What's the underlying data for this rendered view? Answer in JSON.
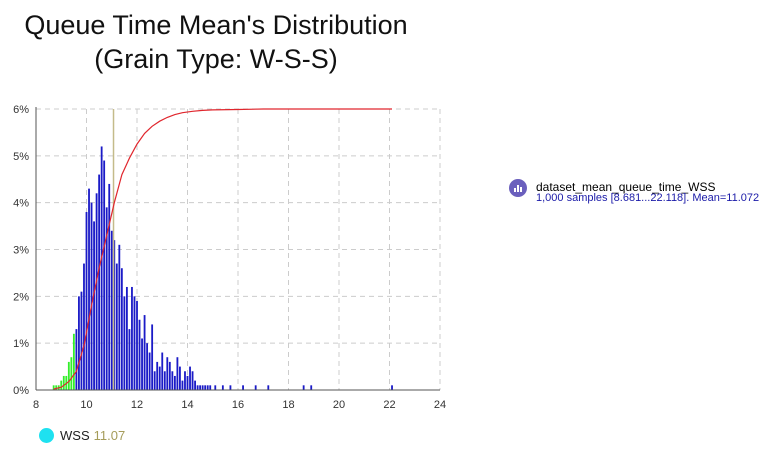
{
  "title": {
    "line1": "Queue Time Mean's Distribution",
    "line2": "(Grain Type: W-S-S)"
  },
  "colors": {
    "bar_main": "#1b1bc7",
    "bar_low": "#33ee2a",
    "cdf_line": "#e0262d",
    "marker_line": "#c4bb8a",
    "grid": "#cccccc",
    "legend_icon": "#6a5fbd",
    "marker_dot": "#1ee1f0"
  },
  "legend": {
    "series_name": "dataset_mean_queue_time_WSS",
    "series_detail": "1,000 samples [8.681...22.118]. Mean=11.072"
  },
  "marker_legend": {
    "label": "WSS",
    "value": "11.07"
  },
  "chart_data": {
    "type": "bar",
    "subtype": "histogram",
    "xlim": [
      8,
      24
    ],
    "x_ticks": [
      "8",
      "10",
      "12",
      "14",
      "16",
      "18",
      "20",
      "22",
      "24"
    ],
    "ylim": [
      0,
      6
    ],
    "y_ticks": [
      "0%",
      "1%",
      "2%",
      "3%",
      "4%",
      "5%",
      "6%"
    ],
    "ylabel_unit": "%",
    "grid": true,
    "bin_width": 0.1,
    "low_region_threshold": 9.6,
    "bins_x": [
      8.7,
      8.8,
      8.9,
      9.0,
      9.1,
      9.2,
      9.3,
      9.4,
      9.5,
      9.6,
      9.7,
      9.8,
      9.9,
      10.0,
      10.1,
      10.2,
      10.3,
      10.4,
      10.5,
      10.6,
      10.7,
      10.8,
      10.9,
      11.0,
      11.1,
      11.2,
      11.3,
      11.4,
      11.5,
      11.6,
      11.7,
      11.8,
      11.9,
      12.0,
      12.1,
      12.2,
      12.3,
      12.4,
      12.5,
      12.6,
      12.7,
      12.8,
      12.9,
      13.0,
      13.1,
      13.2,
      13.3,
      13.4,
      13.5,
      13.6,
      13.7,
      13.8,
      13.9,
      14.0,
      14.1,
      14.2,
      14.3,
      14.4,
      14.5,
      14.6,
      14.7,
      14.8,
      14.9,
      15.1,
      15.4,
      15.7,
      16.2,
      16.7,
      17.2,
      18.6,
      18.9,
      22.1
    ],
    "values": [
      0.1,
      0.1,
      0.1,
      0.2,
      0.3,
      0.3,
      0.6,
      0.7,
      1.2,
      1.3,
      2.0,
      2.1,
      2.7,
      3.8,
      4.3,
      4.0,
      3.6,
      4.2,
      4.6,
      5.2,
      4.9,
      3.9,
      4.4,
      3.4,
      3.2,
      2.7,
      3.1,
      2.6,
      2.0,
      2.2,
      1.3,
      2.2,
      2.0,
      1.9,
      1.5,
      1.1,
      1.6,
      1.0,
      0.8,
      1.4,
      0.4,
      0.6,
      0.5,
      0.8,
      0.4,
      0.7,
      0.6,
      0.4,
      0.3,
      0.7,
      0.5,
      0.2,
      0.4,
      0.3,
      0.5,
      0.4,
      0.2,
      0.1,
      0.1,
      0.1,
      0.1,
      0.1,
      0.1,
      0.1,
      0.1,
      0.1,
      0.1,
      0.1,
      0.1,
      0.1,
      0.1,
      0.1
    ],
    "cdf_line": {
      "x": [
        8.7,
        9.0,
        9.3,
        9.6,
        9.9,
        10.2,
        10.5,
        10.8,
        11.1,
        11.4,
        11.7,
        12.0,
        12.3,
        12.6,
        12.9,
        13.2,
        13.5,
        13.8,
        14.2,
        14.6,
        15.0,
        16.0,
        17.0,
        19.0,
        22.1
      ],
      "y": [
        0.02,
        0.06,
        0.18,
        0.4,
        0.95,
        1.8,
        2.6,
        3.3,
        4.0,
        4.6,
        4.95,
        5.25,
        5.48,
        5.63,
        5.74,
        5.82,
        5.88,
        5.92,
        5.95,
        5.97,
        5.98,
        5.99,
        6.0,
        6.0,
        6.0
      ]
    },
    "mean_marker_x": 11.07
  }
}
